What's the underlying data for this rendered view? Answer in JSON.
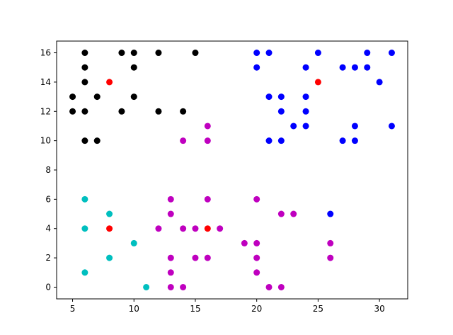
{
  "chart_data": {
    "type": "scatter",
    "xlim": [
      3.7,
      32.3
    ],
    "ylim": [
      -0.8,
      16.8
    ],
    "xticks": [
      5,
      10,
      15,
      20,
      25,
      30
    ],
    "yticks": [
      0,
      2,
      4,
      6,
      8,
      10,
      12,
      14,
      16
    ],
    "series": [
      {
        "color": "#000000",
        "x": [
          6,
          9,
          10,
          12,
          15,
          6,
          10,
          6,
          5,
          7,
          10,
          5,
          6,
          9,
          12,
          14,
          6,
          7
        ],
        "values": [
          16,
          16,
          16,
          16,
          16,
          15,
          15,
          14,
          13,
          13,
          13,
          12,
          12,
          12,
          12,
          12,
          10,
          10
        ]
      },
      {
        "color": "#0000ff",
        "x": [
          20,
          21,
          25,
          29,
          31,
          20,
          24,
          27,
          28,
          29,
          30,
          21,
          22,
          24,
          22,
          24,
          23,
          24,
          28,
          31,
          21,
          22,
          27,
          28,
          26
        ],
        "values": [
          16,
          16,
          16,
          16,
          16,
          15,
          15,
          15,
          15,
          15,
          14,
          13,
          13,
          13,
          12,
          12,
          11,
          11,
          11,
          11,
          10,
          10,
          10,
          10,
          5
        ]
      },
      {
        "color": "#00bfbf",
        "x": [
          6,
          8,
          6,
          10,
          8,
          6,
          11
        ],
        "values": [
          6,
          5,
          4,
          3,
          2,
          1,
          0
        ]
      },
      {
        "color": "#bf00bf",
        "x": [
          16,
          14,
          16,
          13,
          16,
          20,
          13,
          22,
          23,
          12,
          14,
          15,
          17,
          19,
          20,
          26,
          13,
          15,
          16,
          20,
          26,
          13,
          20,
          13,
          14,
          21,
          22
        ],
        "values": [
          11,
          10,
          10,
          6,
          6,
          6,
          5,
          5,
          5,
          4,
          4,
          4,
          4,
          3,
          3,
          3,
          2,
          2,
          2,
          2,
          2,
          1,
          1,
          0,
          0,
          0,
          0
        ]
      },
      {
        "color": "#ff0000",
        "x": [
          8,
          25,
          8,
          16
        ],
        "values": [
          14,
          14,
          4,
          4
        ]
      }
    ]
  }
}
